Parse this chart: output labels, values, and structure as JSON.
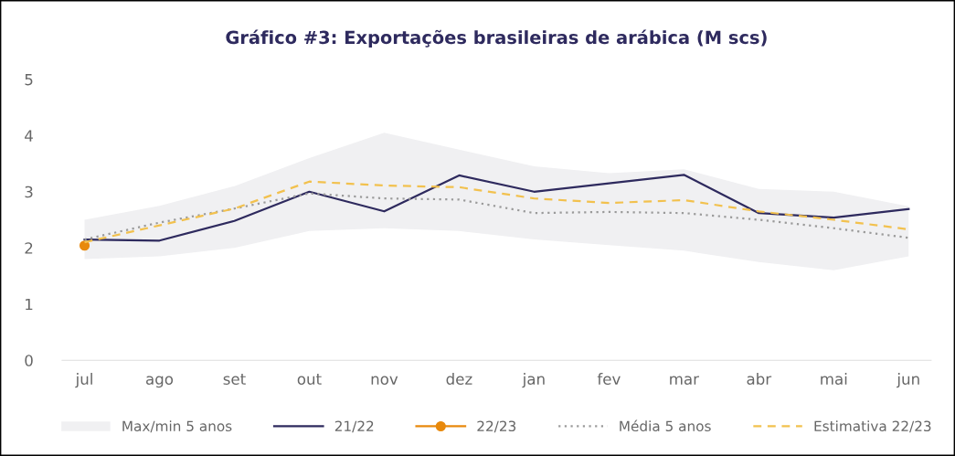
{
  "chart_data": {
    "type": "line",
    "title": "Gráfico #3: Exportações brasileiras de arábica (M scs)",
    "categories": [
      "jul",
      "ago",
      "set",
      "out",
      "nov",
      "dez",
      "jan",
      "fev",
      "mar",
      "abr",
      "mai",
      "jun"
    ],
    "ylim": [
      0,
      5
    ],
    "yticks": [
      0,
      1,
      2,
      3,
      4,
      5
    ],
    "grid": false,
    "legend": "bottom",
    "series": [
      {
        "name": "Max/min 5 anos",
        "type": "area",
        "color": "#f0f0f2",
        "values": [
          null,
          null,
          null,
          null,
          null,
          null,
          null,
          null,
          null,
          null,
          null,
          null
        ],
        "lower": [
          1.8,
          1.85,
          2.0,
          2.3,
          2.35,
          2.3,
          2.15,
          2.05,
          1.95,
          1.75,
          1.6,
          1.85
        ],
        "upper": [
          2.5,
          2.75,
          3.1,
          3.6,
          4.05,
          3.75,
          3.45,
          3.33,
          3.4,
          3.05,
          3.0,
          2.74
        ]
      },
      {
        "name": "21/22",
        "color": "#2e2a5e",
        "line_style": "solid",
        "marker": "none",
        "values": [
          2.15,
          2.13,
          2.48,
          3.0,
          2.65,
          3.29,
          3.0,
          3.15,
          3.3,
          2.62,
          2.54,
          2.69
        ]
      },
      {
        "name": "22/23",
        "color": "#e8890c",
        "line_style": "solid",
        "marker": "circle",
        "values": [
          2.04,
          null,
          null,
          null,
          null,
          null,
          null,
          null,
          null,
          null,
          null,
          null
        ]
      },
      {
        "name": "Média 5 anos",
        "color": "#9a9a9a",
        "line_style": "dotted",
        "marker": "none",
        "values": [
          2.15,
          2.45,
          2.7,
          2.97,
          2.88,
          2.86,
          2.62,
          2.64,
          2.62,
          2.5,
          2.35,
          2.18
        ]
      },
      {
        "name": "Estimativa 22/23",
        "color": "#f2c14e",
        "line_style": "dashed",
        "marker": "none",
        "values": [
          2.1,
          2.4,
          2.7,
          3.18,
          3.11,
          3.08,
          2.88,
          2.8,
          2.85,
          2.65,
          2.5,
          2.33
        ]
      }
    ]
  }
}
